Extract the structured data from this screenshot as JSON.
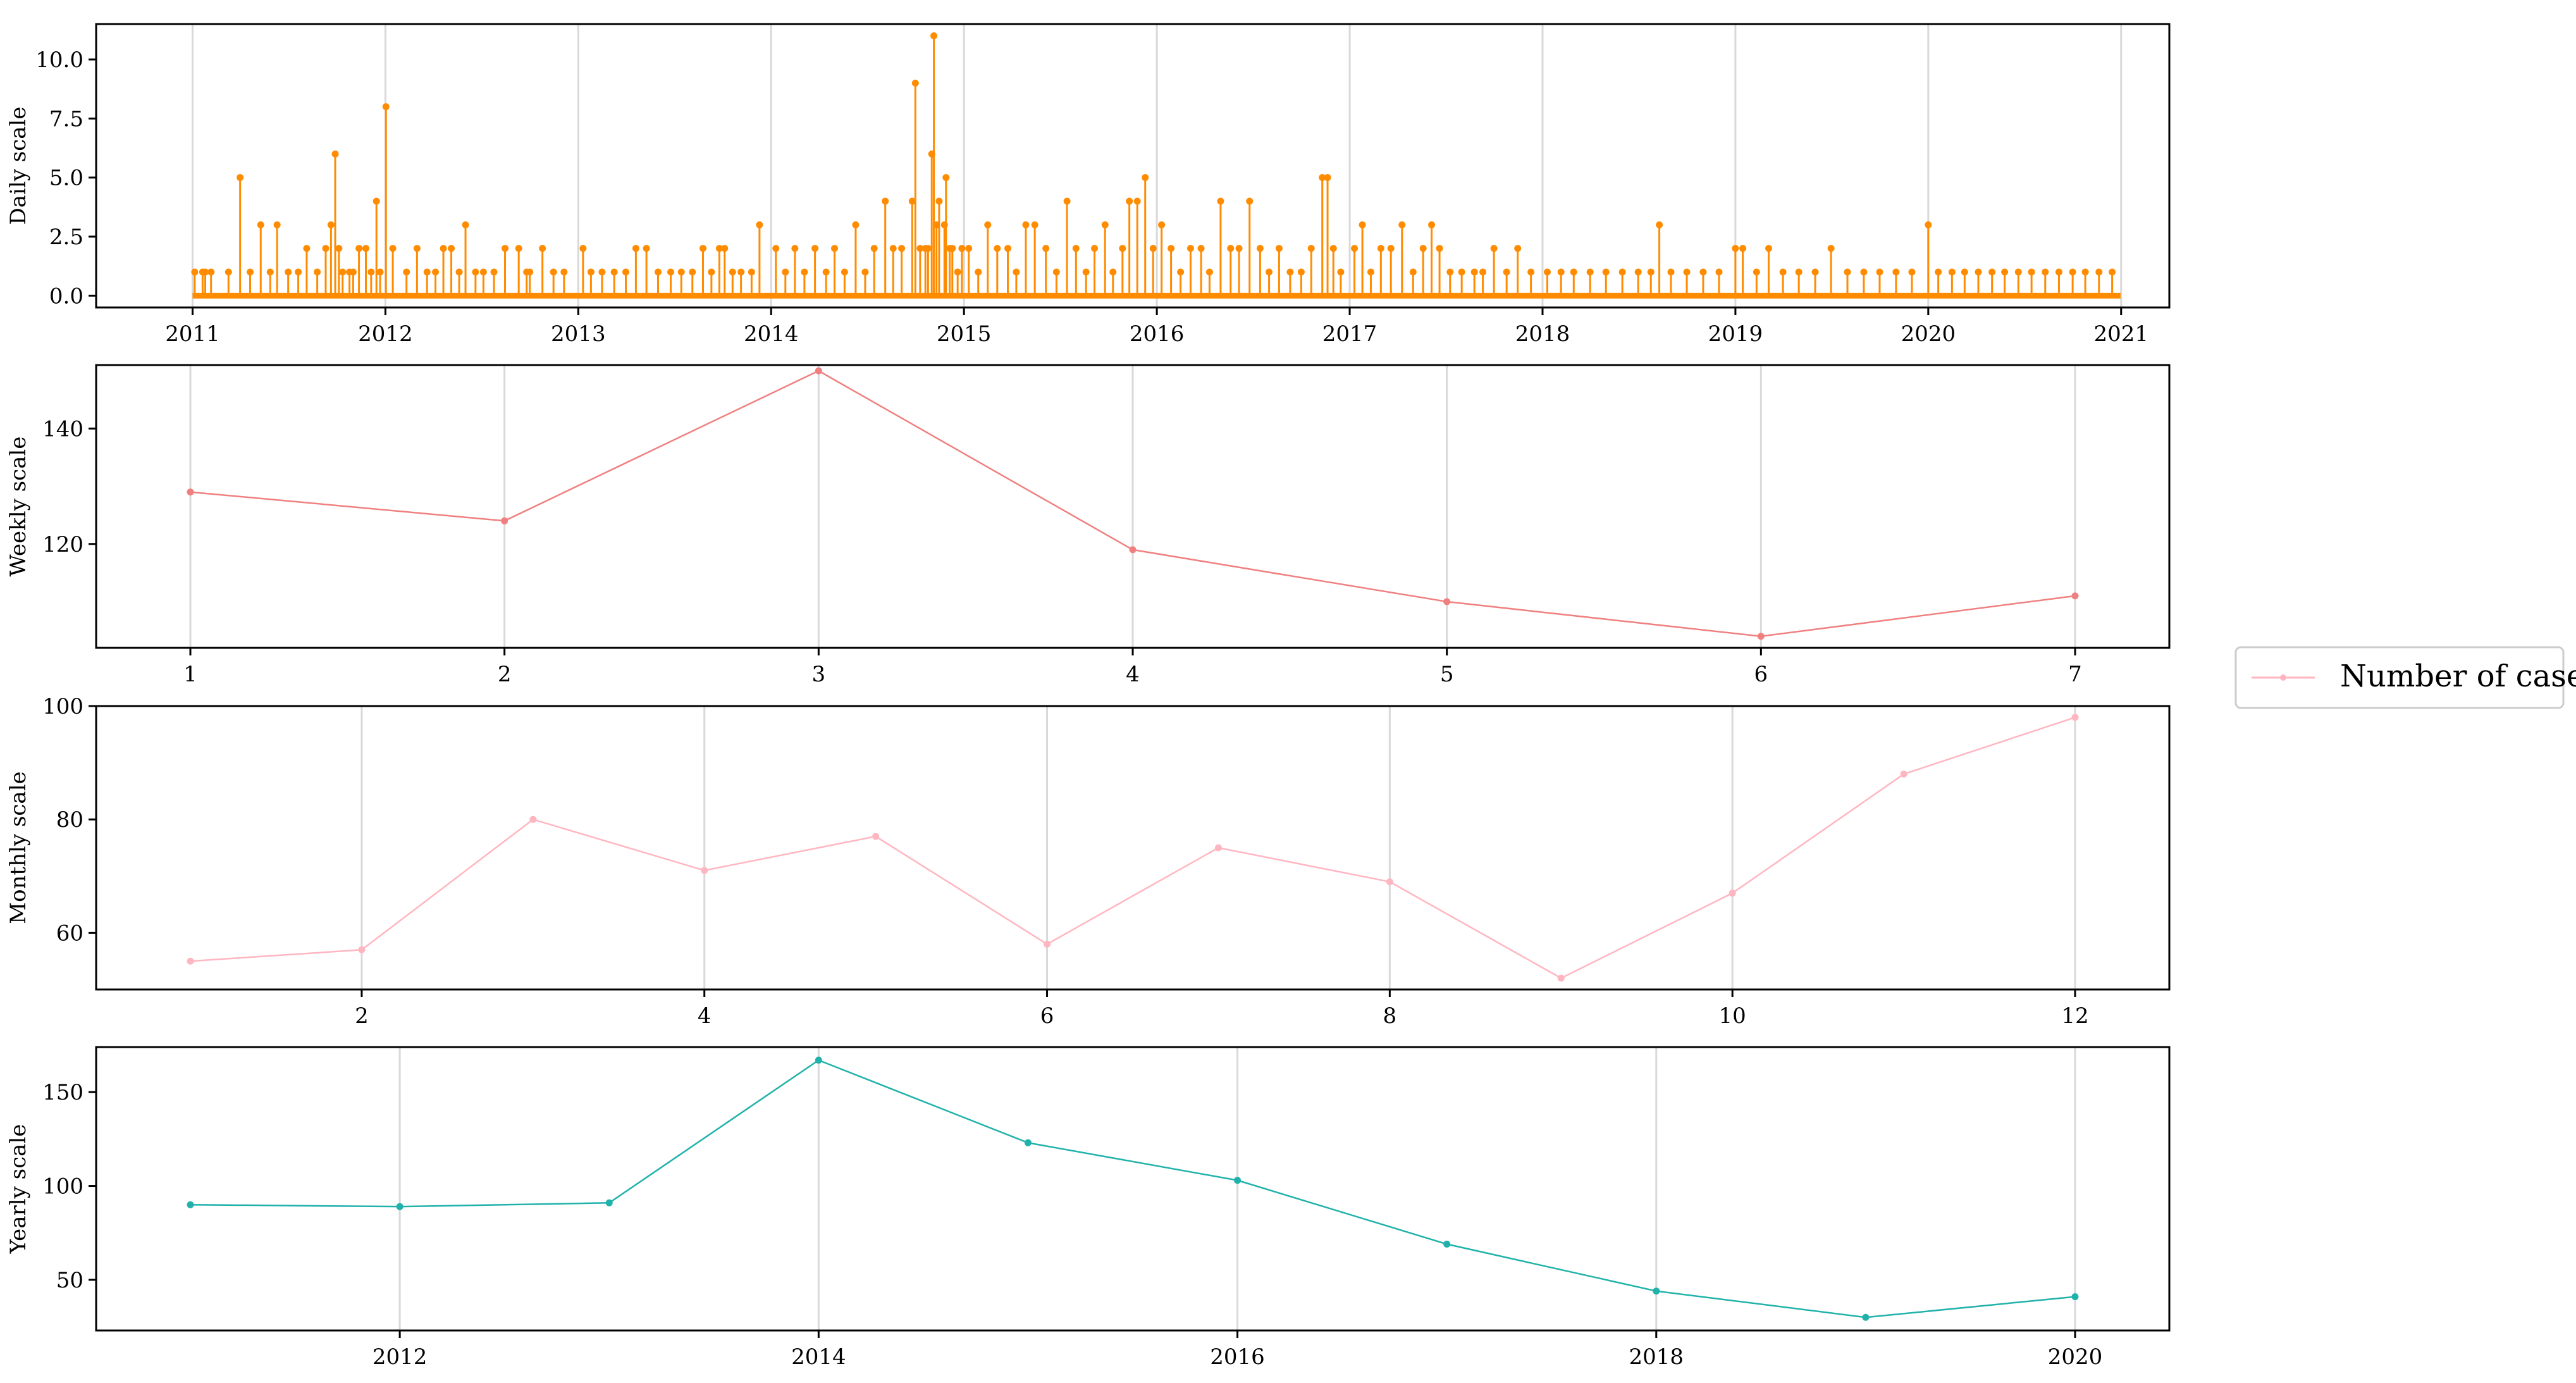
{
  "legend": {
    "label": "Number of cases",
    "color": "#ffb6c1"
  },
  "chart_data": [
    {
      "type": "line",
      "ylabel": "Daily scale",
      "color": "#ff8c00",
      "markers": true,
      "stems": true,
      "grid": "x",
      "x_kind": "year",
      "xlim": [
        2010.5,
        2021.25
      ],
      "ylim": [
        -0.5,
        11.5
      ],
      "xticks": [
        2011,
        2012,
        2013,
        2014,
        2015,
        2016,
        2017,
        2018,
        2019,
        2020,
        2021
      ],
      "xtick_labels": [
        "2011",
        "2012",
        "2013",
        "2014",
        "2015",
        "2016",
        "2017",
        "2018",
        "2019",
        "2020",
        "2021"
      ],
      "yticks": [
        0.0,
        2.5,
        5.0,
        7.5,
        10.0
      ],
      "ytick_labels": [
        "0.0",
        "2.5",
        "5.0",
        "7.5",
        "10.0"
      ],
      "x_start": "2011-01-01",
      "x_end": "2020-12-31",
      "baseline_value": 0,
      "points": [
        [
          "2011-01-05",
          1
        ],
        [
          "2011-01-20",
          1
        ],
        [
          "2011-02-05",
          1
        ],
        [
          "2011-04-01",
          5
        ],
        [
          "2011-04-20",
          1
        ],
        [
          "2011-05-10",
          3
        ],
        [
          "2011-05-28",
          1
        ],
        [
          "2011-06-10",
          3
        ],
        [
          "2011-07-01",
          1
        ],
        [
          "2011-07-20",
          1
        ],
        [
          "2011-08-05",
          2
        ],
        [
          "2011-08-25",
          1
        ],
        [
          "2011-09-10",
          2
        ],
        [
          "2011-09-20",
          3
        ],
        [
          "2011-10-05",
          2
        ],
        [
          "2011-10-25",
          1
        ],
        [
          "2011-11-12",
          2
        ],
        [
          "2011-12-05",
          1
        ],
        [
          "2011-12-22",
          1
        ],
        [
          "2011-01-25",
          1
        ],
        [
          "2011-03-10",
          1
        ],
        [
          "2011-09-28",
          6
        ],
        [
          "2011-10-12",
          1
        ],
        [
          "2011-11-01",
          1
        ],
        [
          "2011-11-25",
          2
        ],
        [
          "2011-12-15",
          4
        ],
        [
          "2012-01-02",
          8
        ],
        [
          "2012-01-15",
          2
        ],
        [
          "2012-02-10",
          1
        ],
        [
          "2012-03-01",
          2
        ],
        [
          "2012-03-20",
          1
        ],
        [
          "2012-04-05",
          1
        ],
        [
          "2012-04-20",
          2
        ],
        [
          "2012-05-05",
          2
        ],
        [
          "2012-05-20",
          1
        ],
        [
          "2012-06-01",
          3
        ],
        [
          "2012-06-20",
          1
        ],
        [
          "2012-07-05",
          1
        ],
        [
          "2012-08-15",
          2
        ],
        [
          "2012-09-10",
          2
        ],
        [
          "2012-10-01",
          1
        ],
        [
          "2012-10-25",
          2
        ],
        [
          "2012-11-15",
          1
        ],
        [
          "2012-12-05",
          1
        ],
        [
          "2012-07-25",
          1
        ],
        [
          "2012-09-25",
          1
        ],
        [
          "2013-01-10",
          2
        ],
        [
          "2013-01-25",
          1
        ],
        [
          "2013-02-15",
          1
        ],
        [
          "2013-03-10",
          1
        ],
        [
          "2013-04-01",
          1
        ],
        [
          "2013-04-20",
          2
        ],
        [
          "2013-05-10",
          2
        ],
        [
          "2013-06-01",
          1
        ],
        [
          "2013-06-25",
          1
        ],
        [
          "2013-07-15",
          1
        ],
        [
          "2013-08-05",
          1
        ],
        [
          "2013-08-25",
          2
        ],
        [
          "2013-09-10",
          1
        ],
        [
          "2013-09-25",
          2
        ],
        [
          "2013-10-05",
          2
        ],
        [
          "2013-10-20",
          1
        ],
        [
          "2013-11-05",
          1
        ],
        [
          "2013-11-25",
          1
        ],
        [
          "2013-12-10",
          3
        ],
        [
          "2014-01-10",
          2
        ],
        [
          "2014-01-28",
          1
        ],
        [
          "2014-02-15",
          2
        ],
        [
          "2014-03-05",
          1
        ],
        [
          "2014-03-25",
          2
        ],
        [
          "2014-04-15",
          1
        ],
        [
          "2014-05-01",
          2
        ],
        [
          "2014-05-20",
          1
        ],
        [
          "2014-06-10",
          3
        ],
        [
          "2014-06-28",
          1
        ],
        [
          "2014-07-15",
          2
        ],
        [
          "2014-08-05",
          4
        ],
        [
          "2014-08-20",
          2
        ],
        [
          "2014-09-05",
          2
        ],
        [
          "2014-09-25",
          4
        ],
        [
          "2014-10-10",
          2
        ],
        [
          "2014-10-25",
          2
        ],
        [
          "2014-11-10",
          3
        ],
        [
          "2014-11-25",
          3
        ],
        [
          "2014-12-10",
          2
        ],
        [
          "2014-12-28",
          2
        ],
        [
          "2014-10-01",
          9
        ],
        [
          "2014-10-20",
          2
        ],
        [
          "2014-11-01",
          6
        ],
        [
          "2014-11-05",
          11
        ],
        [
          "2014-11-15",
          4
        ],
        [
          "2014-11-28",
          5
        ],
        [
          "2014-12-05",
          2
        ],
        [
          "2014-12-20",
          1
        ],
        [
          "2015-01-10",
          2
        ],
        [
          "2015-01-28",
          1
        ],
        [
          "2015-02-15",
          3
        ],
        [
          "2015-03-05",
          2
        ],
        [
          "2015-03-25",
          2
        ],
        [
          "2015-04-10",
          1
        ],
        [
          "2015-04-28",
          3
        ],
        [
          "2015-05-15",
          3
        ],
        [
          "2015-06-05",
          2
        ],
        [
          "2015-06-25",
          1
        ],
        [
          "2015-07-15",
          4
        ],
        [
          "2015-08-01",
          2
        ],
        [
          "2015-08-20",
          1
        ],
        [
          "2015-09-05",
          2
        ],
        [
          "2015-09-25",
          3
        ],
        [
          "2015-10-10",
          1
        ],
        [
          "2015-10-28",
          2
        ],
        [
          "2015-11-10",
          4
        ],
        [
          "2015-11-25",
          4
        ],
        [
          "2015-12-10",
          5
        ],
        [
          "2015-12-25",
          2
        ],
        [
          "2016-01-10",
          3
        ],
        [
          "2016-01-28",
          2
        ],
        [
          "2016-02-15",
          1
        ],
        [
          "2016-03-05",
          2
        ],
        [
          "2016-03-25",
          2
        ],
        [
          "2016-04-10",
          1
        ],
        [
          "2016-05-01",
          4
        ],
        [
          "2016-05-20",
          2
        ],
        [
          "2016-06-05",
          2
        ],
        [
          "2016-06-25",
          4
        ],
        [
          "2016-07-15",
          2
        ],
        [
          "2016-08-01",
          1
        ],
        [
          "2016-08-20",
          2
        ],
        [
          "2016-09-10",
          1
        ],
        [
          "2016-10-01",
          1
        ],
        [
          "2016-10-20",
          2
        ],
        [
          "2016-11-10",
          5
        ],
        [
          "2016-11-20",
          5
        ],
        [
          "2016-12-01",
          2
        ],
        [
          "2016-12-15",
          1
        ],
        [
          "2017-01-10",
          2
        ],
        [
          "2017-01-25",
          3
        ],
        [
          "2017-02-10",
          1
        ],
        [
          "2017-03-01",
          2
        ],
        [
          "2017-03-20",
          2
        ],
        [
          "2017-04-10",
          3
        ],
        [
          "2017-05-01",
          1
        ],
        [
          "2017-05-20",
          2
        ],
        [
          "2017-06-05",
          3
        ],
        [
          "2017-06-20",
          2
        ],
        [
          "2017-07-10",
          1
        ],
        [
          "2017-08-01",
          1
        ],
        [
          "2017-08-25",
          1
        ],
        [
          "2017-09-10",
          1
        ],
        [
          "2017-10-01",
          2
        ],
        [
          "2017-10-25",
          1
        ],
        [
          "2017-11-15",
          2
        ],
        [
          "2017-12-10",
          1
        ],
        [
          "2018-01-10",
          1
        ],
        [
          "2018-02-05",
          1
        ],
        [
          "2018-03-01",
          1
        ],
        [
          "2018-04-01",
          1
        ],
        [
          "2018-05-01",
          1
        ],
        [
          "2018-06-01",
          1
        ],
        [
          "2018-07-01",
          1
        ],
        [
          "2018-07-25",
          1
        ],
        [
          "2018-08-10",
          3
        ],
        [
          "2018-09-01",
          1
        ],
        [
          "2018-10-01",
          1
        ],
        [
          "2018-11-01",
          1
        ],
        [
          "2018-12-01",
          1
        ],
        [
          "2019-01-01",
          2
        ],
        [
          "2019-01-15",
          2
        ],
        [
          "2019-02-10",
          1
        ],
        [
          "2019-03-05",
          2
        ],
        [
          "2019-04-01",
          1
        ],
        [
          "2019-05-01",
          1
        ],
        [
          "2019-06-01",
          1
        ],
        [
          "2019-07-01",
          2
        ],
        [
          "2019-08-01",
          1
        ],
        [
          "2019-09-01",
          1
        ],
        [
          "2019-10-01",
          1
        ],
        [
          "2019-11-01",
          1
        ],
        [
          "2019-12-01",
          1
        ],
        [
          "2020-01-01",
          3
        ],
        [
          "2020-01-20",
          1
        ],
        [
          "2020-02-15",
          1
        ],
        [
          "2020-03-10",
          1
        ],
        [
          "2020-04-05",
          1
        ],
        [
          "2020-05-01",
          1
        ],
        [
          "2020-05-25",
          1
        ],
        [
          "2020-06-20",
          1
        ],
        [
          "2020-07-15",
          1
        ],
        [
          "2020-08-10",
          1
        ],
        [
          "2020-09-05",
          1
        ],
        [
          "2020-10-01",
          1
        ],
        [
          "2020-10-25",
          1
        ],
        [
          "2020-11-20",
          1
        ],
        [
          "2020-12-15",
          1
        ]
      ]
    },
    {
      "type": "line",
      "ylabel": "Weekly scale",
      "color": "#f08080",
      "markers": true,
      "grid": "x",
      "x": [
        1,
        2,
        3,
        4,
        5,
        6,
        7
      ],
      "values": [
        129,
        124,
        150,
        119,
        110,
        104,
        111
      ],
      "xlim": [
        0.7,
        7.3
      ],
      "ylim": [
        102,
        151
      ],
      "xticks": [
        1,
        2,
        3,
        4,
        5,
        6,
        7
      ],
      "xtick_labels": [
        "1",
        "2",
        "3",
        "4",
        "5",
        "6",
        "7"
      ],
      "yticks": [
        120,
        140
      ],
      "ytick_labels": [
        "120",
        "140"
      ]
    },
    {
      "type": "line",
      "ylabel": "Monthly scale",
      "color": "#ffb6c1",
      "markers": true,
      "grid": "x",
      "x": [
        1,
        2,
        3,
        4,
        5,
        6,
        7,
        8,
        9,
        10,
        11,
        12
      ],
      "values": [
        55,
        57,
        80,
        71,
        77,
        58,
        75,
        69,
        52,
        67,
        88,
        98
      ],
      "xlim": [
        0.45,
        12.55
      ],
      "ylim": [
        50,
        100
      ],
      "xticks": [
        2,
        4,
        6,
        8,
        10,
        12
      ],
      "xtick_labels": [
        "2",
        "4",
        "6",
        "8",
        "10",
        "12"
      ],
      "yticks": [
        60,
        80,
        100
      ],
      "ytick_labels": [
        "60",
        "80",
        "100"
      ]
    },
    {
      "type": "line",
      "ylabel": "Yearly scale",
      "color": "#20b2aa",
      "markers": true,
      "grid": "x",
      "x": [
        2011,
        2012,
        2013,
        2014,
        2015,
        2016,
        2017,
        2018,
        2019,
        2020
      ],
      "values": [
        90,
        89,
        91,
        167,
        123,
        103,
        69,
        44,
        30,
        41
      ],
      "xlim": [
        2010.55,
        2020.45
      ],
      "ylim": [
        23,
        174
      ],
      "xticks": [
        2012,
        2014,
        2016,
        2018,
        2020
      ],
      "xtick_labels": [
        "2012",
        "2014",
        "2016",
        "2018",
        "2020"
      ],
      "yticks": [
        50,
        100,
        150
      ],
      "ytick_labels": [
        "50",
        "100",
        "150"
      ]
    }
  ]
}
